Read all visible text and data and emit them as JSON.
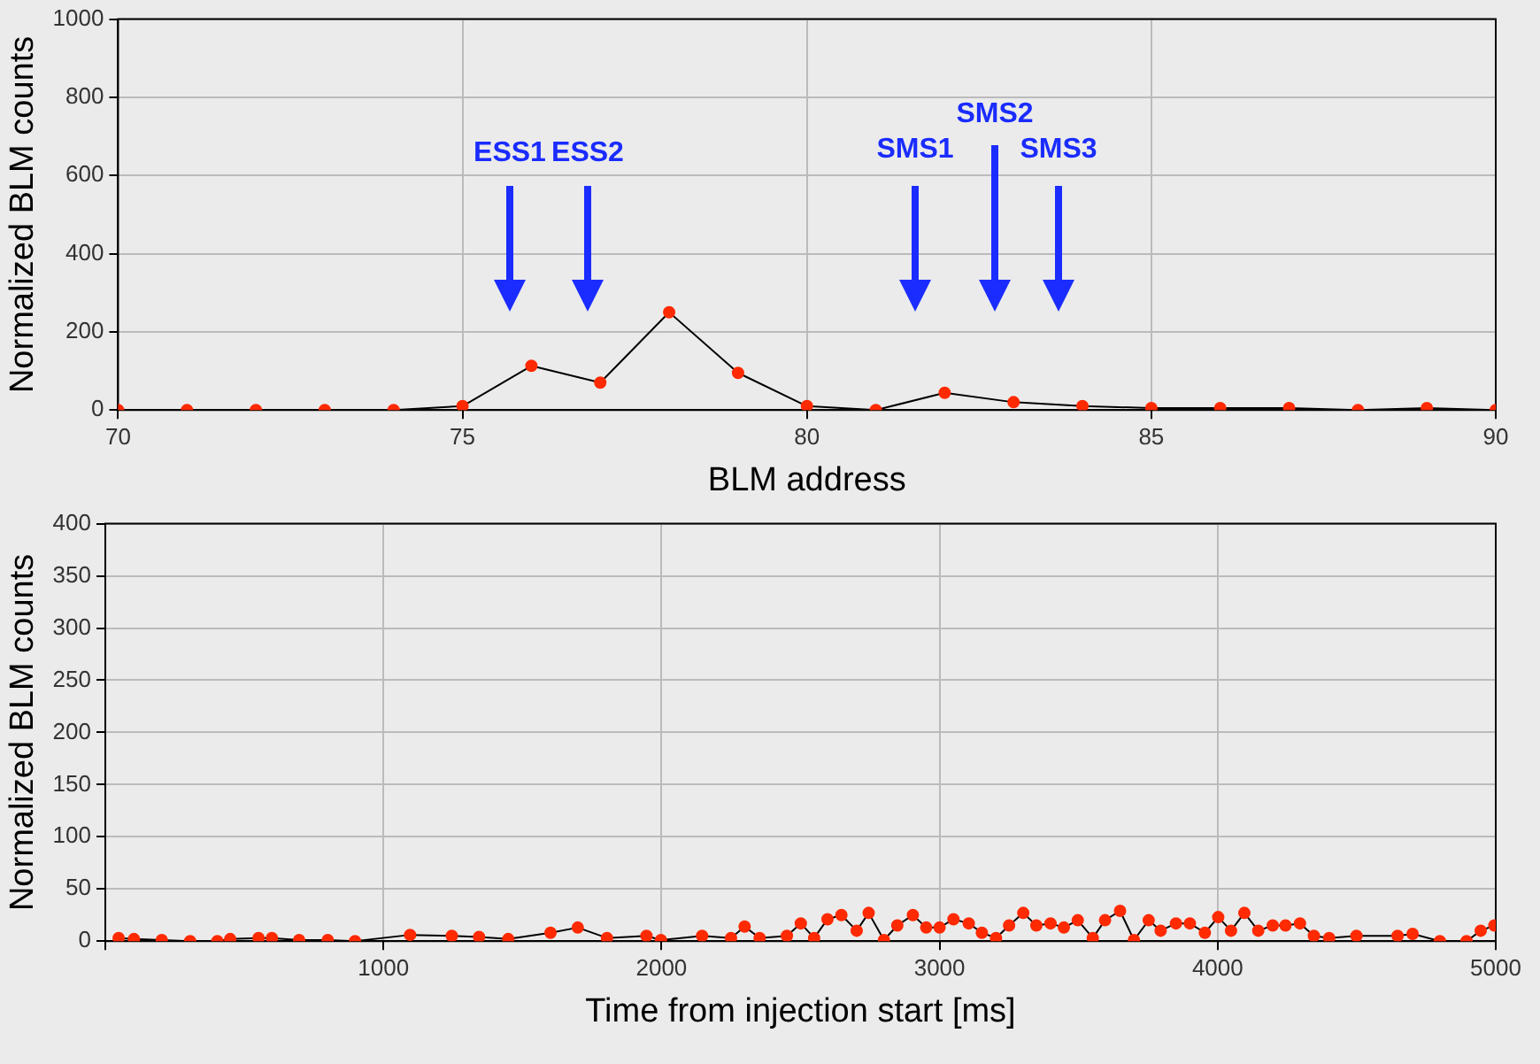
{
  "chart_data": [
    {
      "type": "line",
      "xlabel": "BLM address",
      "ylabel": "Normalized BLM counts",
      "xlim": [
        70,
        90
      ],
      "xticks": [
        70,
        75,
        80,
        85,
        90
      ],
      "ylim": [
        0,
        1000
      ],
      "yticks": [
        0,
        200,
        400,
        600,
        800,
        1000
      ],
      "grid": true,
      "marker": "circle",
      "line_style": "solid",
      "legend": false,
      "series": [
        {
          "color": "#ff2a00",
          "x": [
            70,
            71,
            72,
            73,
            74,
            75,
            76,
            77,
            78,
            79,
            80,
            81,
            82,
            83,
            84,
            85,
            86,
            87,
            88,
            89,
            90
          ],
          "values": [
            0,
            0,
            0,
            0,
            0,
            10,
            113,
            70,
            250,
            95,
            10,
            0,
            44,
            20,
            10,
            5,
            5,
            5,
            0,
            5,
            0
          ]
        }
      ],
      "annotations": [
        "ESS1",
        "ESS2",
        "SMS1",
        "SMS2",
        "SMS3"
      ]
    },
    {
      "type": "line",
      "xlabel": "Time from injection start [ms]",
      "ylabel": "Normalized BLM counts",
      "xlim": [
        0,
        5000
      ],
      "xticks": [
        {
          "value": 0,
          "label": null
        },
        1000,
        2000,
        3000,
        4000,
        5000
      ],
      "ylim": [
        0,
        400
      ],
      "yticks": [
        0,
        50,
        100,
        150,
        200,
        250,
        300,
        350,
        400
      ],
      "grid": true,
      "marker": "circle",
      "line_style": "solid",
      "legend": false,
      "series": [
        {
          "color": "#ff2a00",
          "x": [
            48,
            103,
            203,
            305,
            403,
            449,
            551,
            599,
            697,
            800,
            898,
            1096,
            1246,
            1344,
            1449,
            1601,
            1699,
            1804,
            1946,
            1998,
            2146,
            2250,
            2299,
            2353,
            2451,
            2501,
            2549,
            2597,
            2647,
            2702,
            2745,
            2800,
            2848,
            2904,
            2952,
            3000,
            3050,
            3105,
            3152,
            3203,
            3250,
            3301,
            3348,
            3399,
            3447,
            3497,
            3551,
            3595,
            3649,
            3699,
            3752,
            3795,
            3850,
            3900,
            3954,
            4002,
            4048,
            4096,
            4146,
            4198,
            4244,
            4296,
            4346,
            4401,
            4499,
            4647,
            4701,
            4799,
            4895,
            4946,
            4995
          ],
          "values": [
            3,
            2,
            1,
            0,
            0,
            2,
            3,
            3,
            1,
            1,
            0,
            6,
            5,
            4,
            2,
            8,
            13,
            3,
            5,
            1,
            5,
            3,
            14,
            3,
            5,
            17,
            3,
            21,
            25,
            10,
            27,
            1,
            15,
            25,
            13,
            13,
            21,
            17,
            8,
            3,
            15,
            27,
            15,
            17,
            13,
            20,
            3,
            20,
            29,
            1,
            20,
            10,
            17,
            17,
            8,
            23,
            10,
            27,
            10,
            15,
            15,
            17,
            5,
            3,
            5,
            5,
            7,
            0,
            0,
            10,
            15
          ]
        }
      ]
    }
  ]
}
